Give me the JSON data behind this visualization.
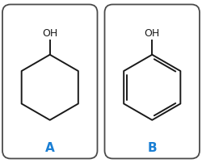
{
  "background": "#ffffff",
  "border_color": "#4a4a4a",
  "label_color": "#1a7fd4",
  "label_fontsize": 11,
  "oh_fontsize": 9,
  "line_color": "#1a1a1a",
  "line_width": 1.4,
  "fig_width": 2.5,
  "fig_height": 2.02,
  "label_A": "A",
  "label_B": "B",
  "oh_label": "OH",
  "border_lw": 1.3
}
